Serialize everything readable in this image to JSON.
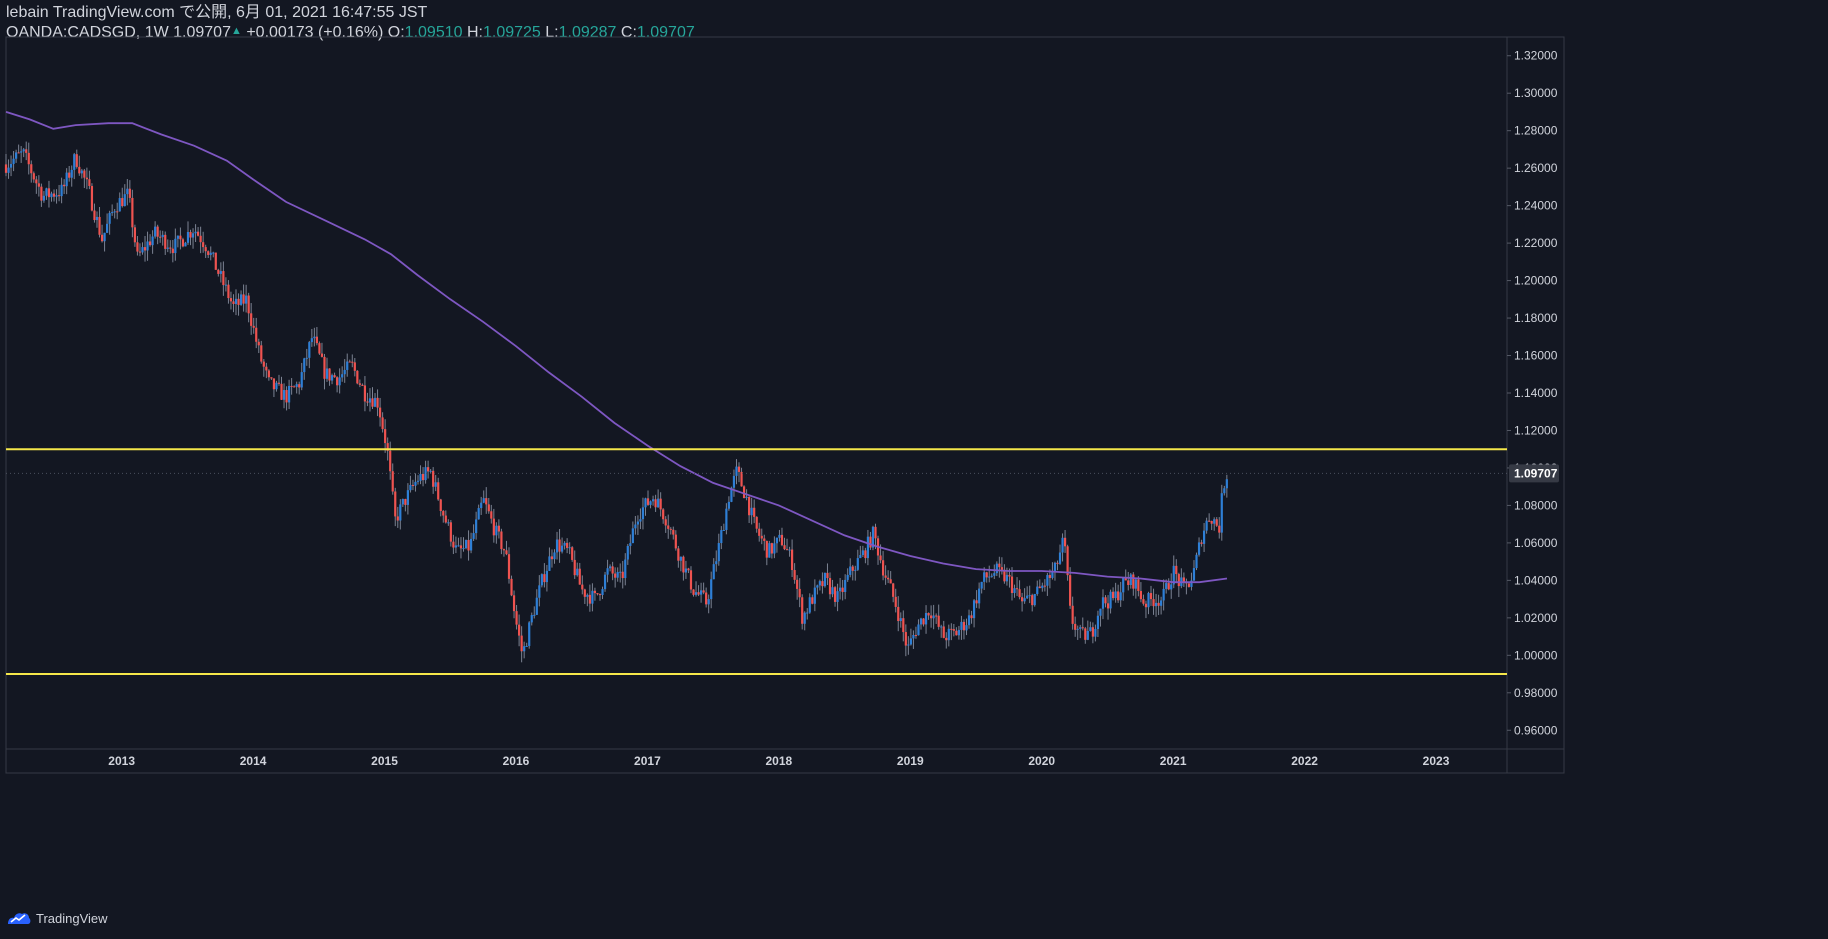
{
  "header": {
    "publisher_line": "lebain TradingView.com で公開, 6月 01, 2021 16:47:55 JST",
    "symbol": "OANDA:CADSGD, 1W",
    "last_price": "1.09707",
    "change": "+0.00173 (+0.16%)",
    "open_label": "O:",
    "open": "1.09510",
    "high_label": "H:",
    "high": "1.09725",
    "low_label": "L:",
    "low": "1.09287",
    "close_label": "C:",
    "close": "1.09707"
  },
  "footer": {
    "brand": "TradingView"
  },
  "colors": {
    "background": "#131722",
    "up": "#2e7fd6",
    "down": "#ef5350",
    "ma": "#7e57c2",
    "horizontal_line": "#f5e74a",
    "price_tag": "#363a45"
  },
  "chart_data": {
    "type": "candlestick",
    "symbol": "OANDA:CADSGD",
    "interval": "1W",
    "ylim": [
      0.95,
      1.33
    ],
    "y_ticks": [
      "1.32000",
      "1.30000",
      "1.28000",
      "1.26000",
      "1.24000",
      "1.22000",
      "1.20000",
      "1.18000",
      "1.16000",
      "1.14000",
      "1.12000",
      "1.10000",
      "1.08000",
      "1.06000",
      "1.04000",
      "1.02000",
      "1.00000",
      "0.98000",
      "0.96000"
    ],
    "x_ticks": [
      "2013",
      "2014",
      "2015",
      "2016",
      "2017",
      "2018",
      "2019",
      "2020",
      "2021",
      "2022",
      "2023"
    ],
    "x_range": [
      2012.12,
      2023.54
    ],
    "current_price_label": "1.09707",
    "current_price": 1.09707,
    "horizontal_lines": [
      1.11,
      0.99
    ],
    "price_path": [
      [
        2012.12,
        1.262
      ],
      [
        2012.25,
        1.268
      ],
      [
        2012.4,
        1.245
      ],
      [
        2012.55,
        1.248
      ],
      [
        2012.65,
        1.266
      ],
      [
        2012.75,
        1.248
      ],
      [
        2012.85,
        1.222
      ],
      [
        2012.95,
        1.24
      ],
      [
        2013.05,
        1.246
      ],
      [
        2013.12,
        1.212
      ],
      [
        2013.25,
        1.225
      ],
      [
        2013.4,
        1.218
      ],
      [
        2013.55,
        1.228
      ],
      [
        2013.65,
        1.218
      ],
      [
        2013.75,
        1.202
      ],
      [
        2013.85,
        1.186
      ],
      [
        2013.95,
        1.19
      ],
      [
        2014.05,
        1.16
      ],
      [
        2014.12,
        1.145
      ],
      [
        2014.25,
        1.138
      ],
      [
        2014.35,
        1.145
      ],
      [
        2014.45,
        1.17
      ],
      [
        2014.55,
        1.15
      ],
      [
        2014.65,
        1.148
      ],
      [
        2014.75,
        1.155
      ],
      [
        2014.85,
        1.14
      ],
      [
        2014.95,
        1.135
      ],
      [
        2015.02,
        1.11
      ],
      [
        2015.08,
        1.072
      ],
      [
        2015.15,
        1.082
      ],
      [
        2015.25,
        1.094
      ],
      [
        2015.35,
        1.098
      ],
      [
        2015.45,
        1.075
      ],
      [
        2015.55,
        1.055
      ],
      [
        2015.65,
        1.058
      ],
      [
        2015.75,
        1.083
      ],
      [
        2015.85,
        1.065
      ],
      [
        2015.92,
        1.055
      ],
      [
        2016.0,
        1.018
      ],
      [
        2016.05,
        1.0
      ],
      [
        2016.12,
        1.02
      ],
      [
        2016.2,
        1.04
      ],
      [
        2016.3,
        1.06
      ],
      [
        2016.4,
        1.055
      ],
      [
        2016.5,
        1.035
      ],
      [
        2016.6,
        1.03
      ],
      [
        2016.7,
        1.045
      ],
      [
        2016.8,
        1.04
      ],
      [
        2016.92,
        1.075
      ],
      [
        2017.05,
        1.085
      ],
      [
        2017.15,
        1.072
      ],
      [
        2017.25,
        1.052
      ],
      [
        2017.35,
        1.035
      ],
      [
        2017.45,
        1.028
      ],
      [
        2017.55,
        1.06
      ],
      [
        2017.62,
        1.085
      ],
      [
        2017.68,
        1.098
      ],
      [
        2017.75,
        1.085
      ],
      [
        2017.82,
        1.068
      ],
      [
        2017.92,
        1.055
      ],
      [
        2018.02,
        1.062
      ],
      [
        2018.1,
        1.05
      ],
      [
        2018.18,
        1.02
      ],
      [
        2018.25,
        1.03
      ],
      [
        2018.35,
        1.04
      ],
      [
        2018.45,
        1.03
      ],
      [
        2018.55,
        1.045
      ],
      [
        2018.65,
        1.055
      ],
      [
        2018.72,
        1.065
      ],
      [
        2018.8,
        1.045
      ],
      [
        2018.9,
        1.025
      ],
      [
        2018.98,
        1.003
      ],
      [
        2019.05,
        1.015
      ],
      [
        2019.15,
        1.025
      ],
      [
        2019.25,
        1.01
      ],
      [
        2019.35,
        1.012
      ],
      [
        2019.45,
        1.02
      ],
      [
        2019.55,
        1.04
      ],
      [
        2019.65,
        1.045
      ],
      [
        2019.75,
        1.04
      ],
      [
        2019.85,
        1.028
      ],
      [
        2019.95,
        1.032
      ],
      [
        2020.02,
        1.038
      ],
      [
        2020.1,
        1.045
      ],
      [
        2020.17,
        1.062
      ],
      [
        2020.22,
        1.02
      ],
      [
        2020.3,
        1.01
      ],
      [
        2020.38,
        1.012
      ],
      [
        2020.45,
        1.028
      ],
      [
        2020.55,
        1.03
      ],
      [
        2020.62,
        1.038
      ],
      [
        2020.7,
        1.04
      ],
      [
        2020.78,
        1.028
      ],
      [
        2020.85,
        1.03
      ],
      [
        2020.92,
        1.03
      ],
      [
        2021.0,
        1.045
      ],
      [
        2021.08,
        1.035
      ],
      [
        2021.15,
        1.042
      ],
      [
        2021.22,
        1.065
      ],
      [
        2021.28,
        1.075
      ],
      [
        2021.35,
        1.068
      ],
      [
        2021.38,
        1.09
      ],
      [
        2021.41,
        1.097
      ]
    ],
    "moving_average": [
      [
        2012.12,
        1.29
      ],
      [
        2012.3,
        1.286
      ],
      [
        2012.48,
        1.281
      ],
      [
        2012.65,
        1.283
      ],
      [
        2012.9,
        1.284
      ],
      [
        2013.08,
        1.284
      ],
      [
        2013.3,
        1.278
      ],
      [
        2013.55,
        1.272
      ],
      [
        2013.8,
        1.264
      ],
      [
        2014.0,
        1.254
      ],
      [
        2014.25,
        1.242
      ],
      [
        2014.55,
        1.232
      ],
      [
        2014.85,
        1.222
      ],
      [
        2015.05,
        1.214
      ],
      [
        2015.25,
        1.203
      ],
      [
        2015.5,
        1.19
      ],
      [
        2015.75,
        1.178
      ],
      [
        2016.0,
        1.165
      ],
      [
        2016.25,
        1.151
      ],
      [
        2016.5,
        1.138
      ],
      [
        2016.75,
        1.124
      ],
      [
        2017.0,
        1.112
      ],
      [
        2017.25,
        1.101
      ],
      [
        2017.5,
        1.092
      ],
      [
        2017.75,
        1.086
      ],
      [
        2018.0,
        1.08
      ],
      [
        2018.25,
        1.072
      ],
      [
        2018.5,
        1.064
      ],
      [
        2018.75,
        1.058
      ],
      [
        2019.0,
        1.053
      ],
      [
        2019.25,
        1.049
      ],
      [
        2019.5,
        1.046
      ],
      [
        2019.75,
        1.045
      ],
      [
        2020.0,
        1.045
      ],
      [
        2020.25,
        1.044
      ],
      [
        2020.5,
        1.042
      ],
      [
        2020.75,
        1.041
      ],
      [
        2021.0,
        1.039
      ],
      [
        2021.2,
        1.039
      ],
      [
        2021.41,
        1.041
      ]
    ]
  }
}
